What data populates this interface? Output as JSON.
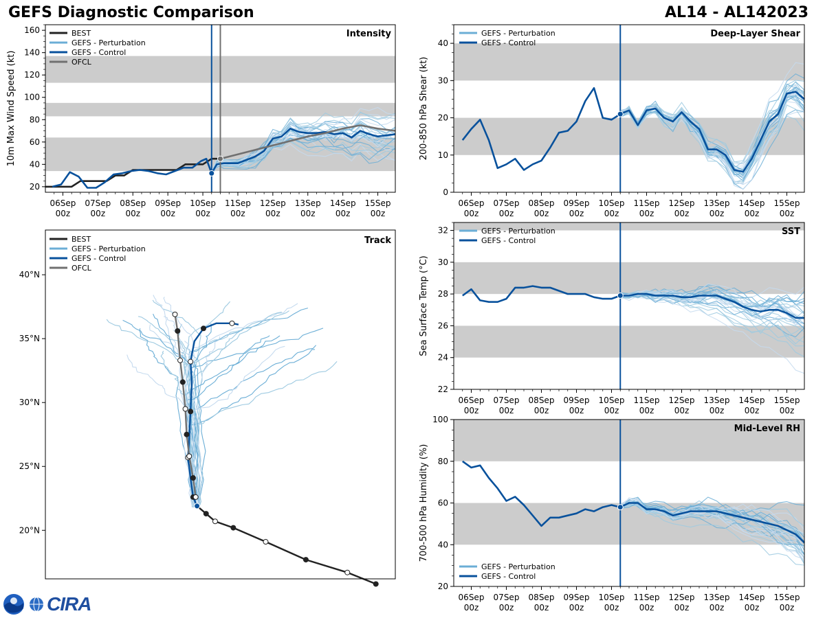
{
  "header": {
    "title": "GEFS Diagnostic Comparison",
    "storm": "AL14 - AL142023"
  },
  "logo": {
    "text": "CIRA",
    "icon": "noaa-logo"
  },
  "colors": {
    "best": "#222222",
    "pert": "#6baed6",
    "control": "#08519c",
    "ofcl": "#707070",
    "band": "#cccccc",
    "initline": "#08519c"
  },
  "time_ticks": [
    {
      "d": "06Sep",
      "h": "00z",
      "t": 0
    },
    {
      "d": "07Sep",
      "h": "00z",
      "t": 1
    },
    {
      "d": "08Sep",
      "h": "00z",
      "t": 2
    },
    {
      "d": "09Sep",
      "h": "00z",
      "t": 3
    },
    {
      "d": "10Sep",
      "h": "00z",
      "t": 4
    },
    {
      "d": "11Sep",
      "h": "00z",
      "t": 5
    },
    {
      "d": "12Sep",
      "h": "00z",
      "t": 6
    },
    {
      "d": "13Sep",
      "h": "00z",
      "t": 7
    },
    {
      "d": "14Sep",
      "h": "00z",
      "t": 8
    },
    {
      "d": "15Sep",
      "h": "00z",
      "t": 9
    }
  ],
  "chart_data": [
    {
      "id": "intensity",
      "type": "line",
      "title": "Intensity",
      "ylabel": "10m Max Wind Speed (kt)",
      "xlim": [
        -0.5,
        9.5
      ],
      "ylim": [
        15,
        165
      ],
      "yticks": [
        20,
        40,
        60,
        80,
        100,
        120,
        140,
        160
      ],
      "bands": [
        [
          34,
          64
        ],
        [
          83,
          95
        ],
        [
          113,
          137
        ]
      ],
      "init_time": 4.25,
      "ofcl_time": 4.5,
      "legend": [
        "BEST",
        "GEFS - Perturbation",
        "GEFS - Control",
        "OFCL"
      ],
      "series": [
        {
          "name": "BEST",
          "x": [
            -0.5,
            -0.25,
            0,
            0.25,
            0.5,
            0.75,
            1,
            1.25,
            1.5,
            1.75,
            2,
            2.25,
            2.5,
            2.75,
            3,
            3.25,
            3.5,
            3.75,
            4,
            4.25,
            4.5
          ],
          "y": [
            20,
            20,
            20,
            20,
            25,
            25,
            25,
            25,
            30,
            30,
            35,
            35,
            35,
            35,
            35,
            35,
            40,
            40,
            40,
            45,
            45
          ]
        },
        {
          "name": "GEFS - Control",
          "x": [
            -0.3,
            -0.05,
            0.2,
            0.45,
            0.7,
            0.95,
            1.2,
            1.45,
            1.7,
            1.95,
            2.2,
            2.45,
            2.7,
            2.95,
            3.2,
            3.45,
            3.7,
            3.95,
            4.1,
            4.25,
            4.4,
            4.6,
            5,
            5.25,
            5.5,
            5.75,
            6,
            6.25,
            6.5,
            6.75,
            7,
            7.25,
            7.5,
            7.75,
            8,
            8.25,
            8.5,
            8.75,
            9,
            9.25,
            9.5
          ],
          "y": [
            20,
            22,
            33,
            29,
            19,
            19,
            24,
            31,
            32,
            34,
            35,
            34,
            32,
            31,
            34,
            37,
            37,
            43,
            45,
            32,
            40,
            41,
            41,
            44,
            47,
            52,
            63,
            65,
            72,
            69,
            68,
            68,
            69,
            67,
            68,
            64,
            70,
            67,
            65,
            66,
            67
          ]
        },
        {
          "name": "OFCL",
          "x": [
            4.5,
            5,
            5.5,
            6,
            6.5,
            7,
            7.5,
            8,
            8.5,
            9,
            9.5
          ],
          "y": [
            45,
            49,
            53,
            57,
            61,
            65,
            68,
            72,
            75,
            72,
            70
          ]
        }
      ],
      "perturbation_count": 30
    },
    {
      "id": "shear",
      "type": "line",
      "title": "Deep-Layer Shear",
      "ylabel": "200-850 hPa Shear (kt)",
      "xlim": [
        -0.5,
        9.5
      ],
      "ylim": [
        0,
        45
      ],
      "yticks": [
        0,
        10,
        20,
        30,
        40
      ],
      "bands": [
        [
          10,
          20
        ],
        [
          30,
          40
        ]
      ],
      "init_time": 4.25,
      "legend": [
        "GEFS - Perturbation",
        "GEFS - Control"
      ],
      "series": [
        {
          "name": "GEFS - Control",
          "x": [
            -0.25,
            0,
            0.25,
            0.5,
            0.75,
            1,
            1.25,
            1.5,
            1.75,
            2,
            2.25,
            2.5,
            2.75,
            3,
            3.25,
            3.5,
            3.75,
            4,
            4.25,
            4.5,
            4.75,
            5,
            5.25,
            5.5,
            5.75,
            6,
            6.25,
            6.5,
            6.75,
            7,
            7.25,
            7.5,
            7.75,
            8,
            8.25,
            8.5,
            8.75,
            9,
            9.25,
            9.5
          ],
          "y": [
            14,
            17,
            19.5,
            14,
            6.5,
            7.5,
            9,
            6,
            7.5,
            8.5,
            12,
            16,
            16.5,
            19,
            24.5,
            28,
            20,
            19.5,
            21,
            22,
            18,
            22,
            22.5,
            20,
            19,
            21.5,
            19,
            17,
            11.5,
            11.5,
            10,
            6,
            5.5,
            9,
            14,
            19,
            21,
            26.5,
            27,
            25
          ]
        }
      ],
      "perturbation_count": 30
    },
    {
      "id": "sst",
      "type": "line",
      "title": "SST",
      "ylabel": "Sea Surface Temp (°C)",
      "xlim": [
        -0.5,
        9.5
      ],
      "ylim": [
        22,
        32.5
      ],
      "yticks": [
        22,
        24,
        26,
        28,
        30,
        32
      ],
      "bands": [
        [
          24,
          26
        ],
        [
          28,
          30
        ],
        [
          32,
          34
        ]
      ],
      "init_time": 4.25,
      "legend": [
        "GEFS - Perturbation",
        "GEFS - Control"
      ],
      "series": [
        {
          "name": "GEFS - Control",
          "x": [
            -0.25,
            0,
            0.25,
            0.5,
            0.75,
            1,
            1.25,
            1.5,
            1.75,
            2,
            2.25,
            2.5,
            2.75,
            3,
            3.25,
            3.5,
            3.75,
            4,
            4.25,
            4.5,
            4.75,
            5,
            5.25,
            5.5,
            5.75,
            6,
            6.25,
            6.5,
            6.75,
            7,
            7.25,
            7.5,
            7.75,
            8,
            8.25,
            8.5,
            8.75,
            9,
            9.25,
            9.5
          ],
          "y": [
            27.9,
            28.3,
            27.6,
            27.5,
            27.5,
            27.7,
            28.4,
            28.4,
            28.5,
            28.4,
            28.4,
            28.2,
            28.0,
            28.0,
            28.0,
            27.8,
            27.7,
            27.7,
            27.9,
            27.9,
            28.0,
            28.0,
            27.9,
            27.9,
            27.9,
            27.8,
            27.8,
            27.9,
            27.9,
            27.9,
            27.7,
            27.5,
            27.2,
            27.0,
            26.9,
            27.0,
            27.0,
            26.8,
            26.5,
            26.5
          ]
        }
      ],
      "perturbation_count": 30
    },
    {
      "id": "rh",
      "type": "line",
      "title": "Mid-Level RH",
      "ylabel": "700-500 hPa Humidity (%)",
      "xlim": [
        -0.5,
        9.5
      ],
      "ylim": [
        20,
        100
      ],
      "yticks": [
        20,
        40,
        60,
        80,
        100
      ],
      "bands": [
        [
          40,
          60
        ],
        [
          80,
          100
        ]
      ],
      "init_time": 4.25,
      "legend": [
        "GEFS - Perturbation",
        "GEFS - Control"
      ],
      "series": [
        {
          "name": "GEFS - Control",
          "x": [
            -0.25,
            0,
            0.25,
            0.5,
            0.75,
            1,
            1.25,
            1.5,
            1.75,
            2,
            2.25,
            2.5,
            2.75,
            3,
            3.25,
            3.5,
            3.75,
            4,
            4.25,
            4.5,
            4.75,
            5,
            5.25,
            5.5,
            5.75,
            6,
            6.25,
            6.5,
            6.75,
            7,
            7.25,
            7.5,
            7.75,
            8,
            8.25,
            8.5,
            8.75,
            9,
            9.25,
            9.5
          ],
          "y": [
            80,
            77,
            78,
            72,
            67,
            61,
            63,
            59,
            54,
            49,
            53,
            53,
            54,
            55,
            57,
            56,
            58,
            59,
            58,
            60,
            60,
            57,
            57,
            56,
            54,
            55,
            56,
            56,
            56,
            56,
            55,
            54,
            53,
            52,
            51,
            50,
            49,
            47,
            45,
            41
          ]
        }
      ],
      "perturbation_count": 30
    },
    {
      "id": "track",
      "type": "scatter",
      "title": "Track",
      "lat_ticks": [
        {
          "v": 40,
          "label": "40°N"
        },
        {
          "v": 35,
          "label": "35°N"
        },
        {
          "v": 30,
          "label": "30°N"
        },
        {
          "v": 25,
          "label": "25°N"
        },
        {
          "v": 20,
          "label": "20°N"
        }
      ],
      "lon_range": [
        -75,
        -48
      ],
      "lat_range": [
        16.2,
        43.5
      ],
      "legend": [
        "BEST",
        "GEFS - Perturbation",
        "GEFS - Control",
        "OFCL"
      ],
      "best_track": [
        [
          -49.5,
          15.8
        ],
        [
          -51.7,
          16.7
        ],
        [
          -54.9,
          17.7
        ],
        [
          -58.0,
          19.1
        ],
        [
          -60.5,
          20.2
        ],
        [
          -61.9,
          20.7
        ],
        [
          -62.6,
          21.3
        ],
        [
          -63.3,
          21.9
        ]
      ],
      "control_track": [
        [
          -63.3,
          21.9
        ],
        [
          -63.6,
          22.6
        ],
        [
          -63.8,
          24.1
        ],
        [
          -64.0,
          25.7
        ],
        [
          -63.9,
          27.2
        ],
        [
          -63.8,
          29.3
        ],
        [
          -63.7,
          31.6
        ],
        [
          -63.8,
          33.2
        ],
        [
          -63.5,
          34.8
        ],
        [
          -62.8,
          35.8
        ],
        [
          -61.8,
          36.2
        ],
        [
          -60.6,
          36.2
        ],
        [
          -60.1,
          36.1
        ]
      ],
      "ofcl_track": [
        [
          -63.4,
          22.6
        ],
        [
          -63.6,
          24.1
        ],
        [
          -63.9,
          25.8
        ],
        [
          -64.1,
          27.5
        ],
        [
          -64.2,
          29.5
        ],
        [
          -64.4,
          31.6
        ],
        [
          -64.6,
          33.3
        ],
        [
          -64.8,
          35.6
        ],
        [
          -65.0,
          36.9
        ]
      ]
    }
  ]
}
